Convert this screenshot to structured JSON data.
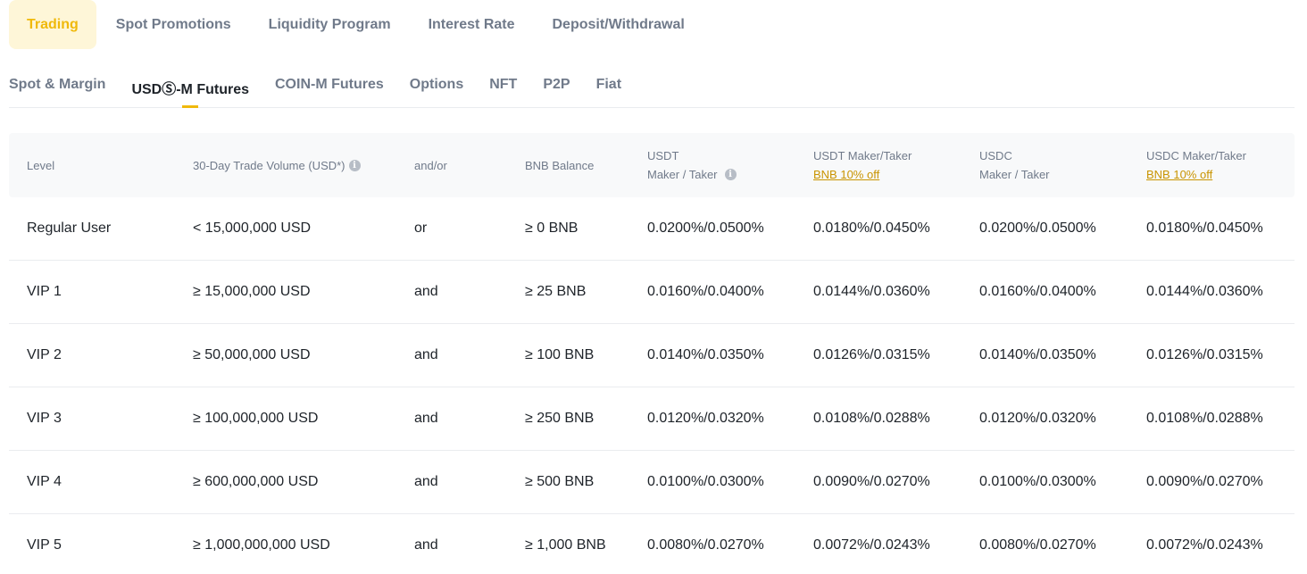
{
  "top_tabs": [
    {
      "label": "Trading",
      "active": true
    },
    {
      "label": "Spot Promotions",
      "active": false
    },
    {
      "label": "Liquidity Program",
      "active": false
    },
    {
      "label": "Interest Rate",
      "active": false
    },
    {
      "label": "Deposit/Withdrawal",
      "active": false
    }
  ],
  "sub_tabs": [
    {
      "label": "Spot & Margin",
      "active": false
    },
    {
      "label": "USDⓈ-M Futures",
      "active": true
    },
    {
      "label": "COIN-M Futures",
      "active": false
    },
    {
      "label": "Options",
      "active": false
    },
    {
      "label": "NFT",
      "active": false
    },
    {
      "label": "P2P",
      "active": false
    },
    {
      "label": "Fiat",
      "active": false
    }
  ],
  "table": {
    "headers": {
      "level": "Level",
      "volume": "30-Day Trade Volume (USD*)",
      "andor": "and/or",
      "bnb_balance": "BNB Balance",
      "usdt_line1": "USDT",
      "usdt_line2": "Maker / Taker",
      "usdt_bnb_line1": "USDT Maker/Taker",
      "usdt_bnb_line2": "BNB 10% off",
      "usdc_line1": "USDC",
      "usdc_line2": "Maker / Taker",
      "usdc_bnb_line1": "USDC Maker/Taker",
      "usdc_bnb_line2": "BNB 10% off"
    },
    "rows": [
      {
        "level": "Regular User",
        "volume": "< 15,000,000 USD",
        "andor": "or",
        "bnb": "≥ 0 BNB",
        "usdt": "0.0200%/0.0500%",
        "usdt_bnb": "0.0180%/0.0450%",
        "usdc": "0.0200%/0.0500%",
        "usdc_bnb": "0.0180%/0.0450%"
      },
      {
        "level": "VIP 1",
        "volume": "≥ 15,000,000 USD",
        "andor": "and",
        "bnb": "≥ 25 BNB",
        "usdt": "0.0160%/0.0400%",
        "usdt_bnb": "0.0144%/0.0360%",
        "usdc": "0.0160%/0.0400%",
        "usdc_bnb": "0.0144%/0.0360%"
      },
      {
        "level": "VIP 2",
        "volume": "≥ 50,000,000 USD",
        "andor": "and",
        "bnb": "≥ 100 BNB",
        "usdt": "0.0140%/0.0350%",
        "usdt_bnb": "0.0126%/0.0315%",
        "usdc": "0.0140%/0.0350%",
        "usdc_bnb": "0.0126%/0.0315%"
      },
      {
        "level": "VIP 3",
        "volume": "≥ 100,000,000 USD",
        "andor": "and",
        "bnb": "≥ 250 BNB",
        "usdt": "0.0120%/0.0320%",
        "usdt_bnb": "0.0108%/0.0288%",
        "usdc": "0.0120%/0.0320%",
        "usdc_bnb": "0.0108%/0.0288%"
      },
      {
        "level": "VIP 4",
        "volume": "≥ 600,000,000 USD",
        "andor": "and",
        "bnb": "≥ 500 BNB",
        "usdt": "0.0100%/0.0300%",
        "usdt_bnb": "0.0090%/0.0270%",
        "usdc": "0.0100%/0.0300%",
        "usdc_bnb": "0.0090%/0.0270%"
      },
      {
        "level": "VIP 5",
        "volume": "≥ 1,000,000,000 USD",
        "andor": "and",
        "bnb": "≥ 1,000 BNB",
        "usdt": "0.0080%/0.0270%",
        "usdt_bnb": "0.0072%/0.0243%",
        "usdc": "0.0080%/0.0270%",
        "usdc_bnb": "0.0072%/0.0243%"
      }
    ]
  },
  "colors": {
    "accent": "#f0b90b",
    "accent_bg": "#fef6d8",
    "link": "#c99400",
    "text_primary": "#1e2329",
    "text_secondary": "#707a8a",
    "header_bg": "#f8f9fa",
    "divider": "#eaecef"
  }
}
